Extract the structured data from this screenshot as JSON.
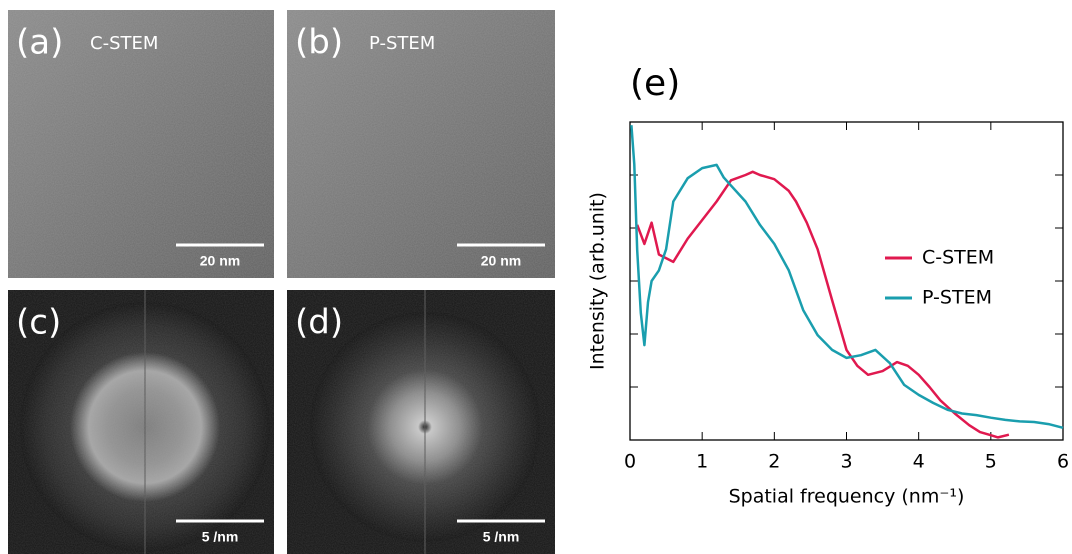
{
  "panels": [
    {
      "label": "(a)",
      "title": "C-STEM",
      "scalebar": "20 nm"
    },
    {
      "label": "(b)",
      "title": "P-STEM",
      "scalebar": "20 nm"
    },
    {
      "label": "(c)",
      "scalebar": "5 /nm"
    },
    {
      "label": "(d)",
      "scalebar": "5 /nm"
    }
  ],
  "chart_data": {
    "type": "line",
    "label": "(e)",
    "x_label": "Spatial frequency (nm⁻¹)",
    "y_label": "Intensity (arb.unit)",
    "xlim": [
      0,
      6
    ],
    "xticks": [
      0,
      1,
      2,
      3,
      4,
      5,
      6
    ],
    "ylim": [
      0,
      6
    ],
    "yticks": [
      1,
      2,
      3,
      4,
      5
    ],
    "series": [
      {
        "name": "C-STEM",
        "color": "#e0194f",
        "x": [
          0.1,
          0.2,
          0.3,
          0.4,
          0.6,
          0.8,
          1.0,
          1.2,
          1.4,
          1.6,
          1.7,
          1.8,
          2.0,
          2.2,
          2.3,
          2.45,
          2.6,
          2.8,
          3.0,
          3.15,
          3.3,
          3.5,
          3.7,
          3.85,
          4.0,
          4.15,
          4.3,
          4.5,
          4.7,
          4.85,
          5.0,
          5.1,
          5.25
        ],
        "values": [
          4.06,
          3.7,
          4.1,
          3.5,
          3.36,
          3.8,
          4.15,
          4.5,
          4.9,
          5.0,
          5.06,
          5.0,
          4.92,
          4.7,
          4.5,
          4.1,
          3.6,
          2.64,
          1.7,
          1.4,
          1.23,
          1.3,
          1.47,
          1.4,
          1.23,
          1.0,
          0.75,
          0.5,
          0.28,
          0.15,
          0.09,
          0.05,
          0.1
        ]
      },
      {
        "name": "P-STEM",
        "color": "#1a9eae",
        "x": [
          0.02,
          0.06,
          0.1,
          0.15,
          0.2,
          0.25,
          0.3,
          0.4,
          0.5,
          0.6,
          0.8,
          1.0,
          1.2,
          1.3,
          1.4,
          1.6,
          1.8,
          2.0,
          2.2,
          2.4,
          2.6,
          2.8,
          3.0,
          3.2,
          3.4,
          3.6,
          3.8,
          4.0,
          4.2,
          4.4,
          4.6,
          4.8,
          5.0,
          5.2,
          5.4,
          5.6,
          5.8,
          6.0
        ],
        "values": [
          5.94,
          5.2,
          3.58,
          2.4,
          1.79,
          2.6,
          3.0,
          3.2,
          3.6,
          4.5,
          4.94,
          5.13,
          5.19,
          4.95,
          4.8,
          4.5,
          4.06,
          3.7,
          3.2,
          2.45,
          1.98,
          1.7,
          1.55,
          1.6,
          1.7,
          1.45,
          1.04,
          0.85,
          0.7,
          0.57,
          0.5,
          0.47,
          0.42,
          0.38,
          0.35,
          0.34,
          0.3,
          0.23
        ]
      }
    ]
  }
}
